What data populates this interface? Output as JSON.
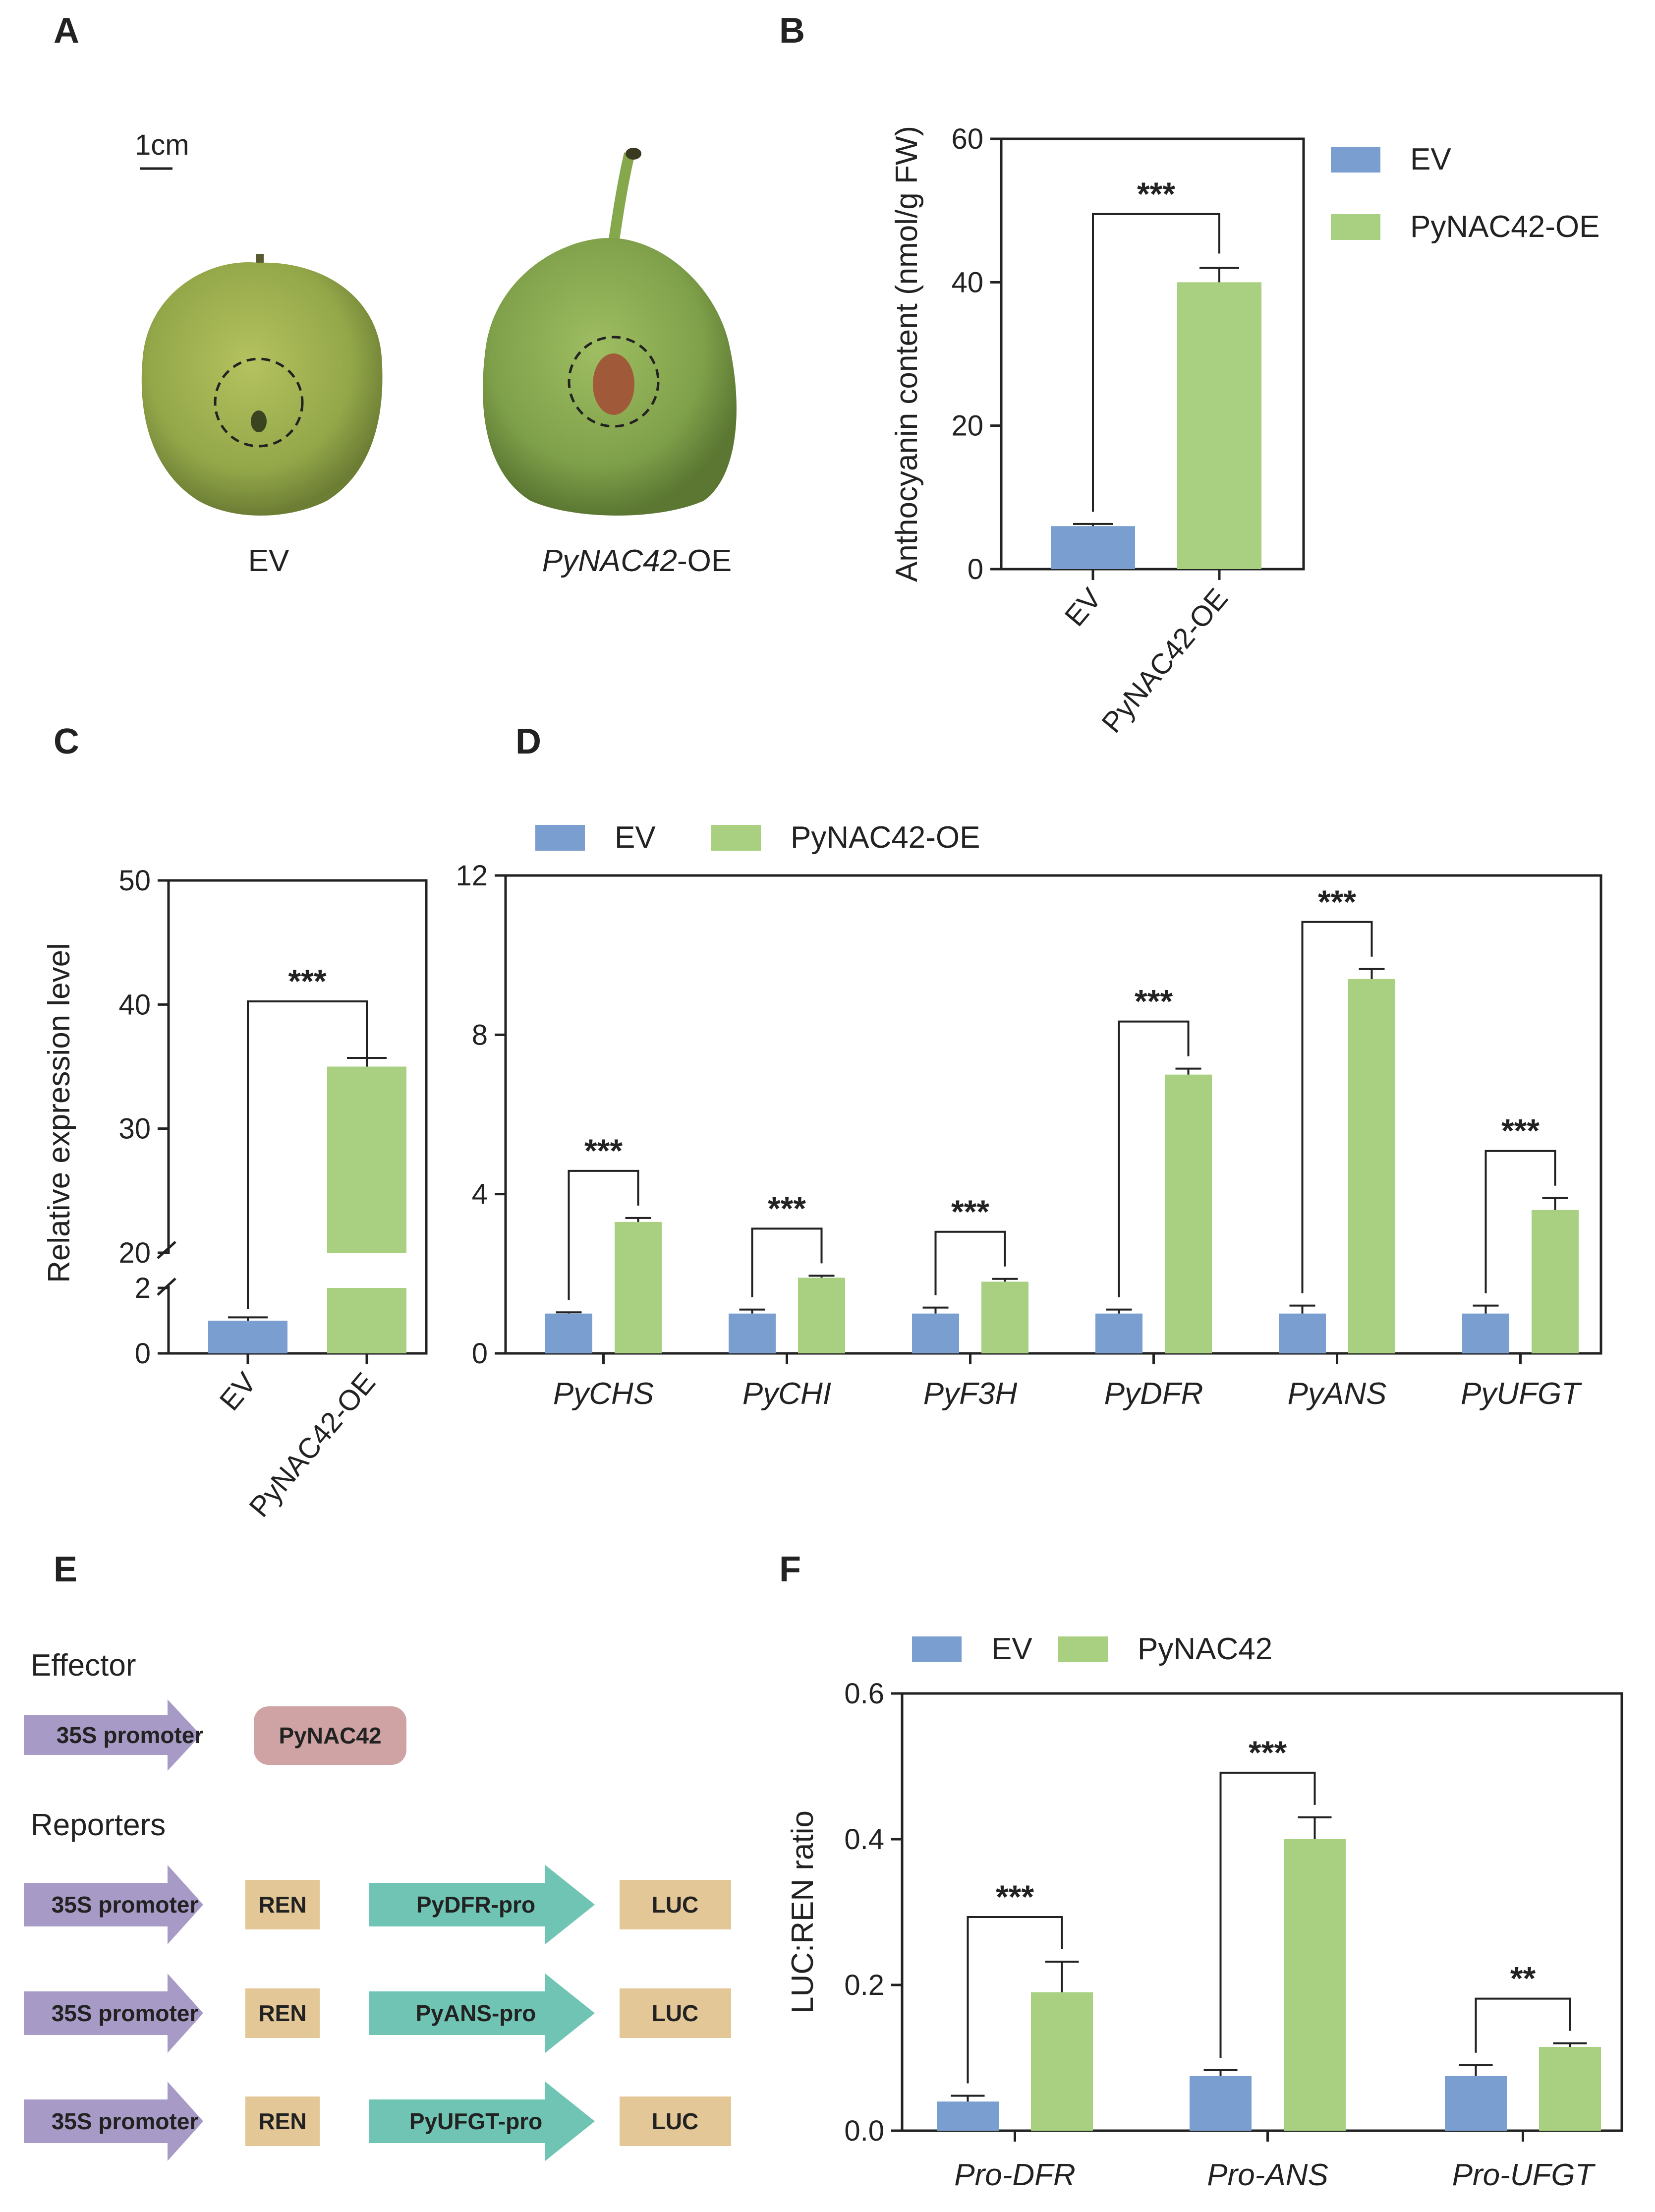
{
  "colors": {
    "ev": "#7b9ed0",
    "oe": "#a8d080",
    "axis": "#222222",
    "promoter": "#a79ac6",
    "effector": "#cfa3a3",
    "ren": "#e3c797",
    "pro": "#6fc4b4",
    "luc": "#e3c797"
  },
  "panel_labels": {
    "A": "A",
    "B": "B",
    "C": "C",
    "D": "D",
    "E": "E",
    "F": "F"
  },
  "panelA": {
    "scale_bar": "1cm",
    "left_label": "EV",
    "right_label_italic": "PyNAC42",
    "right_label_suffix": "-OE"
  },
  "chart_data": [
    {
      "id": "B",
      "type": "bar",
      "title": "",
      "categories": [
        "EV",
        "PyNAC42-OE"
      ],
      "values": [
        6,
        40
      ],
      "errors": [
        0.3,
        2
      ],
      "ylabel": "Anthocyanin content (nmol/g FW)",
      "ylim": [
        0,
        60
      ],
      "yticks": [
        "0",
        "20",
        "40",
        "60"
      ],
      "legend": [
        "EV",
        "PyNAC42-OE"
      ],
      "significance": "***"
    },
    {
      "id": "C",
      "type": "bar",
      "title": "",
      "categories": [
        "EV",
        "PyNAC42-OE"
      ],
      "values": [
        1,
        35
      ],
      "errors": [
        0.1,
        0.7
      ],
      "ylabel": "Relative expression level",
      "ylim": [
        0,
        50
      ],
      "axis_break": [
        2,
        20
      ],
      "yticks": [
        "0",
        "2",
        "20",
        "30",
        "40",
        "50"
      ],
      "significance": "***"
    },
    {
      "id": "D",
      "type": "bar",
      "title": "",
      "categories": [
        "PyCHS",
        "PyCHI",
        "PyF3H",
        "PyDFR",
        "PyANS",
        "PyUFGT"
      ],
      "series": [
        {
          "name": "EV",
          "values": [
            1,
            1,
            1,
            1,
            1,
            1
          ],
          "errors": [
            0.03,
            0.1,
            0.15,
            0.1,
            0.2,
            0.2
          ]
        },
        {
          "name": "PyNAC42-OE",
          "values": [
            3.3,
            1.9,
            1.8,
            7,
            9.4,
            3.6
          ],
          "errors": [
            0.1,
            0.05,
            0.07,
            0.15,
            0.25,
            0.3
          ]
        }
      ],
      "ylim": [
        0,
        12
      ],
      "yticks": [
        "0",
        "4",
        "8",
        "12"
      ],
      "significance": [
        "***",
        "***",
        "***",
        "***",
        "***",
        "***"
      ]
    },
    {
      "id": "F",
      "type": "bar",
      "title": "",
      "categories": [
        "Pro-DFR",
        "Pro-ANS",
        "Pro-UFGT"
      ],
      "series": [
        {
          "name": "EV",
          "values": [
            0.04,
            0.075,
            0.075
          ],
          "errors": [
            0.008,
            0.008,
            0.015
          ]
        },
        {
          "name": "PyNAC42",
          "values": [
            0.19,
            0.4,
            0.115
          ],
          "errors": [
            0.042,
            0.03,
            0.005
          ]
        }
      ],
      "ylabel": "LUC:REN ratio",
      "ylim": [
        0,
        0.6
      ],
      "yticks": [
        "0.0",
        "0.2",
        "0.4",
        "0.6"
      ],
      "significance": [
        "***",
        "***",
        "**"
      ]
    }
  ],
  "panelE": {
    "effector_title": "Effector",
    "reporters_title": "Reporters",
    "promoter": "35S promoter",
    "effector_gene": "PyNAC42",
    "ren": "REN",
    "luc": "LUC",
    "reporter_promoters": [
      "PyDFR-pro",
      "PyANS-pro",
      "PyUFGT-pro"
    ]
  }
}
